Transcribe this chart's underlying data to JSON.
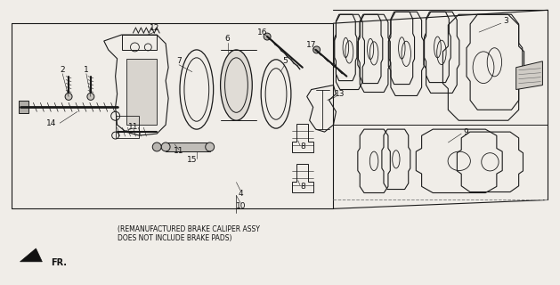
{
  "bg_color": "#f0ede8",
  "line_color": "#1a1a1a",
  "text_color": "#111111",
  "fig_width": 6.29,
  "fig_height": 3.2,
  "dpi": 100,
  "note_line1": "(REMANUFACTURED BRAKE CALIPER ASSY",
  "note_line2": "DOES NOT INCLUDE BRAKE PADS)",
  "fr_label": "FR."
}
